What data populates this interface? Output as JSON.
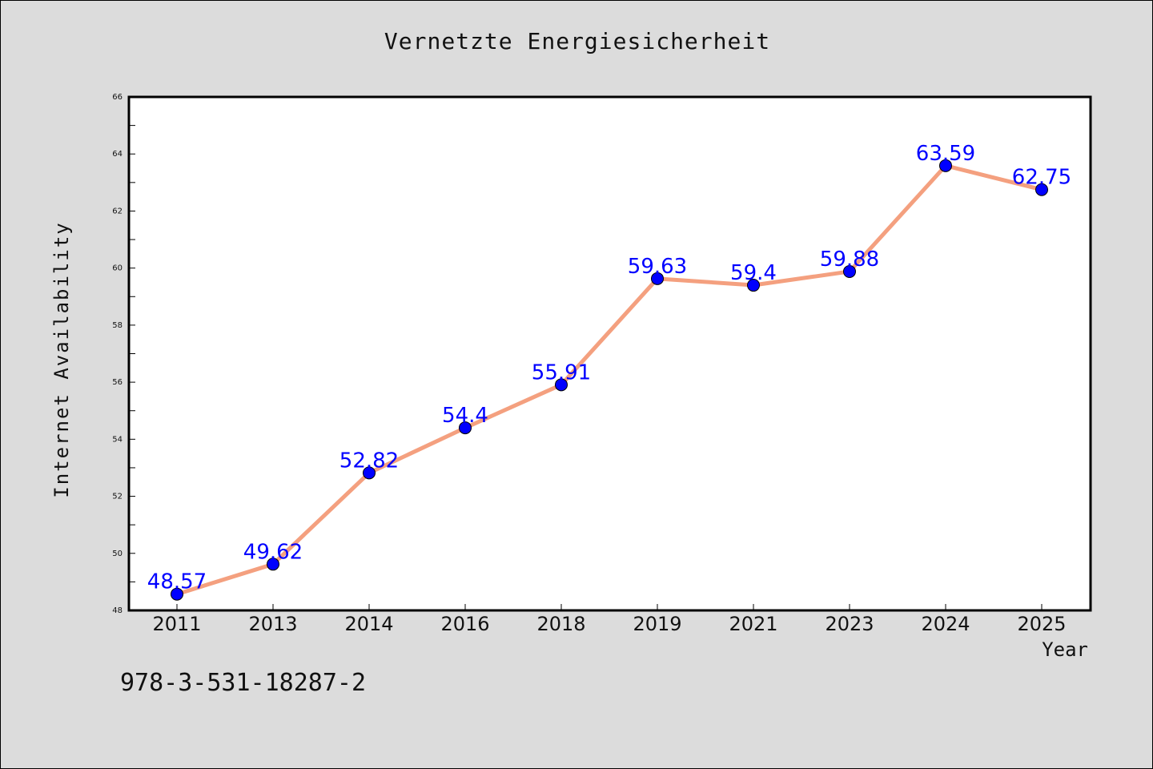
{
  "chart_data": {
    "type": "line",
    "title": "Vernetzte Energiesicherheit",
    "xlabel": "Year",
    "ylabel": "Internet Availability",
    "categories": [
      "2011",
      "2013",
      "2014",
      "2016",
      "2018",
      "2019",
      "2021",
      "2023",
      "2024",
      "2025"
    ],
    "series": [
      {
        "values": [
          48.57,
          49.62,
          52.82,
          54.4,
          55.91,
          59.63,
          59.4,
          59.88,
          63.59,
          62.75
        ],
        "labels": [
          "48.57",
          "49.62",
          "52.82",
          "54.4",
          "55.91",
          "59.63",
          "59.4",
          "59.88",
          "63.59",
          "62.75"
        ],
        "line_color": "#f4a07f",
        "marker_color": "#0000ff"
      }
    ],
    "ylim": [
      48,
      66
    ],
    "yticks": [
      "48",
      "50",
      "52",
      "54",
      "56",
      "58",
      "60",
      "62",
      "64",
      "66"
    ],
    "grid": false,
    "legend": "none"
  },
  "annotation": {
    "code": "978-3-531-18287-2"
  },
  "colors": {
    "background": "#dcdcdc",
    "plot_background": "#ffffff",
    "line": "#f4a07f",
    "marker": "#0000ff",
    "data_label": "#0000ff"
  }
}
